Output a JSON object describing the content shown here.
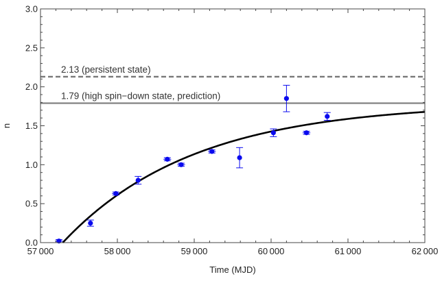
{
  "chart_data": {
    "type": "scatter",
    "title": "",
    "xlabel": "Time (MJD)",
    "ylabel": "n",
    "xlim": [
      57000,
      62000
    ],
    "ylim": [
      0,
      3
    ],
    "x_ticks": [
      57000,
      58000,
      59000,
      60000,
      61000,
      62000
    ],
    "x_tick_labels": [
      "57 000",
      "58 000",
      "59 000",
      "60 000",
      "61 000",
      "62 000"
    ],
    "y_ticks": [
      0,
      0.5,
      1,
      1.5,
      2,
      2.5,
      3
    ],
    "y_tick_labels": [
      "0.0",
      "0.5",
      "1.0",
      "1.5",
      "2.0",
      "2.5",
      "3.0"
    ],
    "grid": false,
    "points": [
      {
        "x": 57240,
        "y": 0.02,
        "err": 0.02,
        "xerr": 50
      },
      {
        "x": 57650,
        "y": 0.25,
        "err": 0.04,
        "xerr": 0
      },
      {
        "x": 57980,
        "y": 0.63,
        "err": 0.02,
        "xerr": 50
      },
      {
        "x": 58270,
        "y": 0.8,
        "err": 0.05,
        "xerr": 0
      },
      {
        "x": 58650,
        "y": 1.07,
        "err": 0.02,
        "xerr": 50
      },
      {
        "x": 58830,
        "y": 1.0,
        "err": 0.02,
        "xerr": 50
      },
      {
        "x": 59230,
        "y": 1.17,
        "err": 0.02,
        "xerr": 50
      },
      {
        "x": 59590,
        "y": 1.09,
        "err": 0.13,
        "xerr": 0
      },
      {
        "x": 60030,
        "y": 1.41,
        "err": 0.05,
        "xerr": 0
      },
      {
        "x": 60200,
        "y": 1.85,
        "err": 0.17,
        "xerr": 0
      },
      {
        "x": 60460,
        "y": 1.41,
        "err": 0.02,
        "xerr": 50
      },
      {
        "x": 60730,
        "y": 1.62,
        "err": 0.05,
        "xerr": 0
      }
    ],
    "fit_curve": {
      "model": "exponential-approach",
      "asymptote": 1.79,
      "x0": 57290,
      "tau": 1700
    },
    "reference_lines": [
      {
        "y": 2.13,
        "label": "2.13 (persistent state)",
        "style": "dashed",
        "color": "#777777"
      },
      {
        "y": 1.79,
        "label": "1.79 (high spin−down state, prediction)",
        "style": "solid",
        "color": "#888888"
      }
    ],
    "colors": {
      "points": "#0a0aee",
      "fit": "#000000"
    }
  }
}
